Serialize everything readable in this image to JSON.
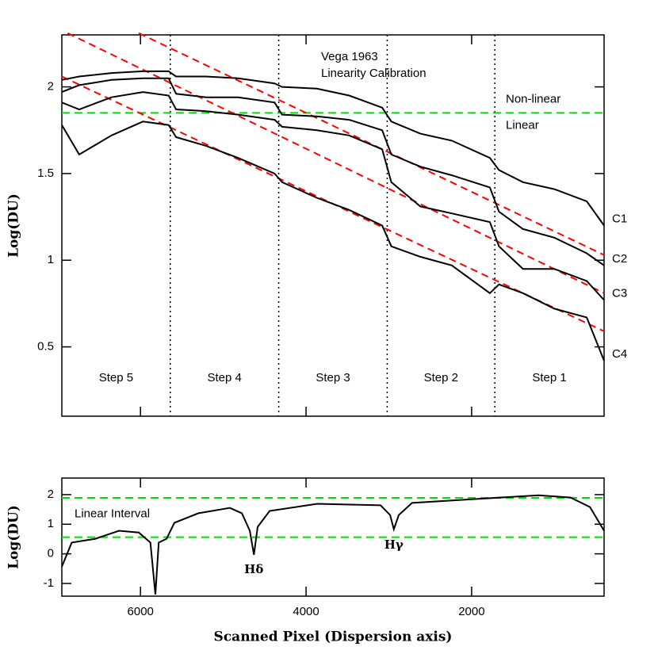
{
  "chart_data": [
    {
      "type": "line",
      "title": [
        "Vega 1963",
        "Linearity  Calibration"
      ],
      "ylabel": "Log(DU)",
      "xlim": [
        6950,
        400
      ],
      "ylim": [
        0.1,
        2.3
      ],
      "xticks": [
        6000,
        4000,
        2000
      ],
      "xtick_labels": false,
      "yticks": [
        0.5,
        1,
        1.5,
        2
      ],
      "x": [
        6950,
        6740,
        6350,
        5970,
        5660,
        5570,
        5210,
        4820,
        4380,
        4290,
        3870,
        3480,
        3080,
        2970,
        2620,
        2240,
        1780,
        1670,
        1380,
        1000,
        610,
        400
      ],
      "series": [
        {
          "name": "C1",
          "color": "#000000",
          "values": [
            2.04,
            2.06,
            2.08,
            2.09,
            2.09,
            2.06,
            2.06,
            2.05,
            2.02,
            2.0,
            1.99,
            1.95,
            1.88,
            1.8,
            1.73,
            1.69,
            1.59,
            1.52,
            1.45,
            1.41,
            1.34,
            1.2
          ]
        },
        {
          "name": "C2",
          "color": "#000000",
          "values": [
            1.97,
            2.01,
            2.04,
            2.05,
            2.05,
            1.96,
            1.94,
            1.94,
            1.91,
            1.84,
            1.83,
            1.81,
            1.75,
            1.61,
            1.54,
            1.49,
            1.42,
            1.28,
            1.18,
            1.13,
            1.04,
            0.97
          ]
        },
        {
          "name": "C3",
          "color": "#000000",
          "values": [
            1.91,
            1.87,
            1.94,
            1.97,
            1.95,
            1.87,
            1.86,
            1.84,
            1.81,
            1.77,
            1.75,
            1.72,
            1.64,
            1.45,
            1.31,
            1.27,
            1.22,
            1.08,
            0.95,
            0.95,
            0.88,
            0.77
          ]
        },
        {
          "name": "C4",
          "color": "#000000",
          "values": [
            1.78,
            1.61,
            1.72,
            1.8,
            1.78,
            1.71,
            1.66,
            1.59,
            1.5,
            1.45,
            1.36,
            1.29,
            1.2,
            1.08,
            1.02,
            0.97,
            0.81,
            0.86,
            0.81,
            0.72,
            0.67,
            0.42
          ]
        }
      ],
      "ref_lines": [
        {
          "color": "#ff0000",
          "x": [
            6020,
            400
          ],
          "y": [
            2.31,
            1.03
          ]
        },
        {
          "color": "#ff0000",
          "x": [
            6880,
            400
          ],
          "y": [
            2.31,
            0.81
          ]
        },
        {
          "color": "#ff0000",
          "x": [
            6950,
            400
          ],
          "y": [
            2.06,
            0.59
          ]
        }
      ],
      "vlines": [
        5640,
        4330,
        3020,
        1720
      ],
      "regions": [
        "Step 5",
        "Step 4",
        "Step 3",
        "Step 2",
        "Step 1"
      ],
      "hlines": [
        {
          "y": 1.85,
          "color": "#00e000",
          "label_above": "Non-linear",
          "label_below": "Linear",
          "label_side": "right"
        }
      ]
    },
    {
      "type": "line",
      "ylabel": "Log(DU)",
      "xlabel": "Scanned Pixel (Dispersion axis)",
      "xlim": [
        6950,
        400
      ],
      "ylim": [
        -1.43,
        2.56
      ],
      "xticks": [
        6000,
        4000,
        2000
      ],
      "xtick_labels": true,
      "yticks": [
        -1,
        0,
        1,
        2
      ],
      "x": [
        6950,
        6830,
        6545,
        6260,
        6020,
        5880,
        5820,
        5780,
        5685,
        5590,
        5300,
        4920,
        4775,
        4680,
        4630,
        4585,
        4440,
        3865,
        3100,
        2985,
        2940,
        2880,
        2720,
        1955,
        1190,
        805,
        570,
        400
      ],
      "series": [
        {
          "name": null,
          "color": "#000000",
          "values": [
            -0.43,
            0.38,
            0.51,
            0.78,
            0.72,
            0.38,
            -1.37,
            0.38,
            0.51,
            1.05,
            1.37,
            1.55,
            1.37,
            0.78,
            -0.03,
            0.91,
            1.45,
            1.69,
            1.64,
            1.31,
            0.83,
            1.31,
            1.72,
            1.85,
            1.98,
            1.9,
            1.58,
            0.78
          ]
        }
      ],
      "hlines": [
        {
          "y": 1.89,
          "color": "#00e000"
        },
        {
          "y": 0.56,
          "color": "#00e000",
          "label_above": "Linear Interval",
          "label_side": "left"
        }
      ],
      "annotations": [
        {
          "text": "Hδ",
          "x": 4630,
          "y": -0.55
        },
        {
          "text": "Hγ",
          "x": 2940,
          "y": 0.28
        }
      ]
    }
  ]
}
